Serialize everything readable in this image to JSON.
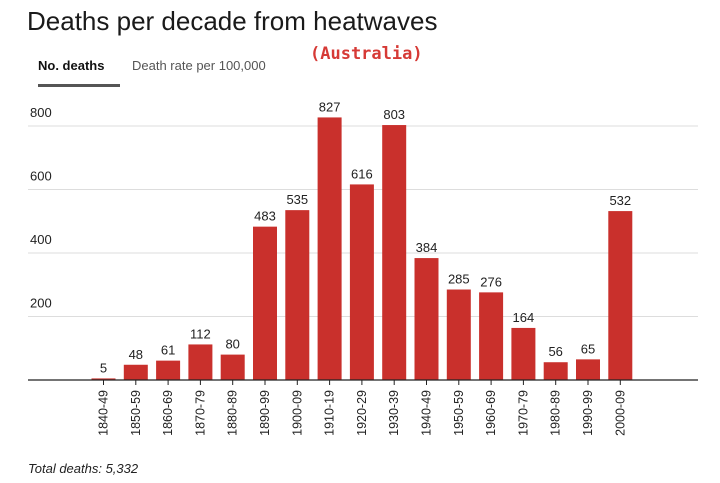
{
  "header": {
    "title": "Deaths per decade from heatwaves",
    "subtitle": "(Australia)"
  },
  "tabs": [
    {
      "label": "No. deaths",
      "active": true
    },
    {
      "label": "Death rate per 100,000",
      "active": false
    }
  ],
  "footer": {
    "total_label": "Total deaths: 5,332"
  },
  "colors": {
    "bar": "#c9302c",
    "grid": "#dddddd",
    "axis": "#222222"
  },
  "chart_data": {
    "type": "bar",
    "categories": [
      "1840-49",
      "1850-59",
      "1860-69",
      "1870-79",
      "1880-89",
      "1890-99",
      "1900-09",
      "1910-19",
      "1920-29",
      "1930-39",
      "1940-49",
      "1950-59",
      "1960-69",
      "1970-79",
      "1980-89",
      "1990-99",
      "2000-09"
    ],
    "values": [
      5,
      48,
      61,
      112,
      80,
      483,
      535,
      827,
      616,
      803,
      384,
      285,
      276,
      164,
      56,
      65,
      532
    ],
    "yticks": [
      200,
      400,
      600,
      800
    ],
    "ylim": [
      0,
      900
    ],
    "grid": true,
    "xlabel": "",
    "ylabel": ""
  }
}
